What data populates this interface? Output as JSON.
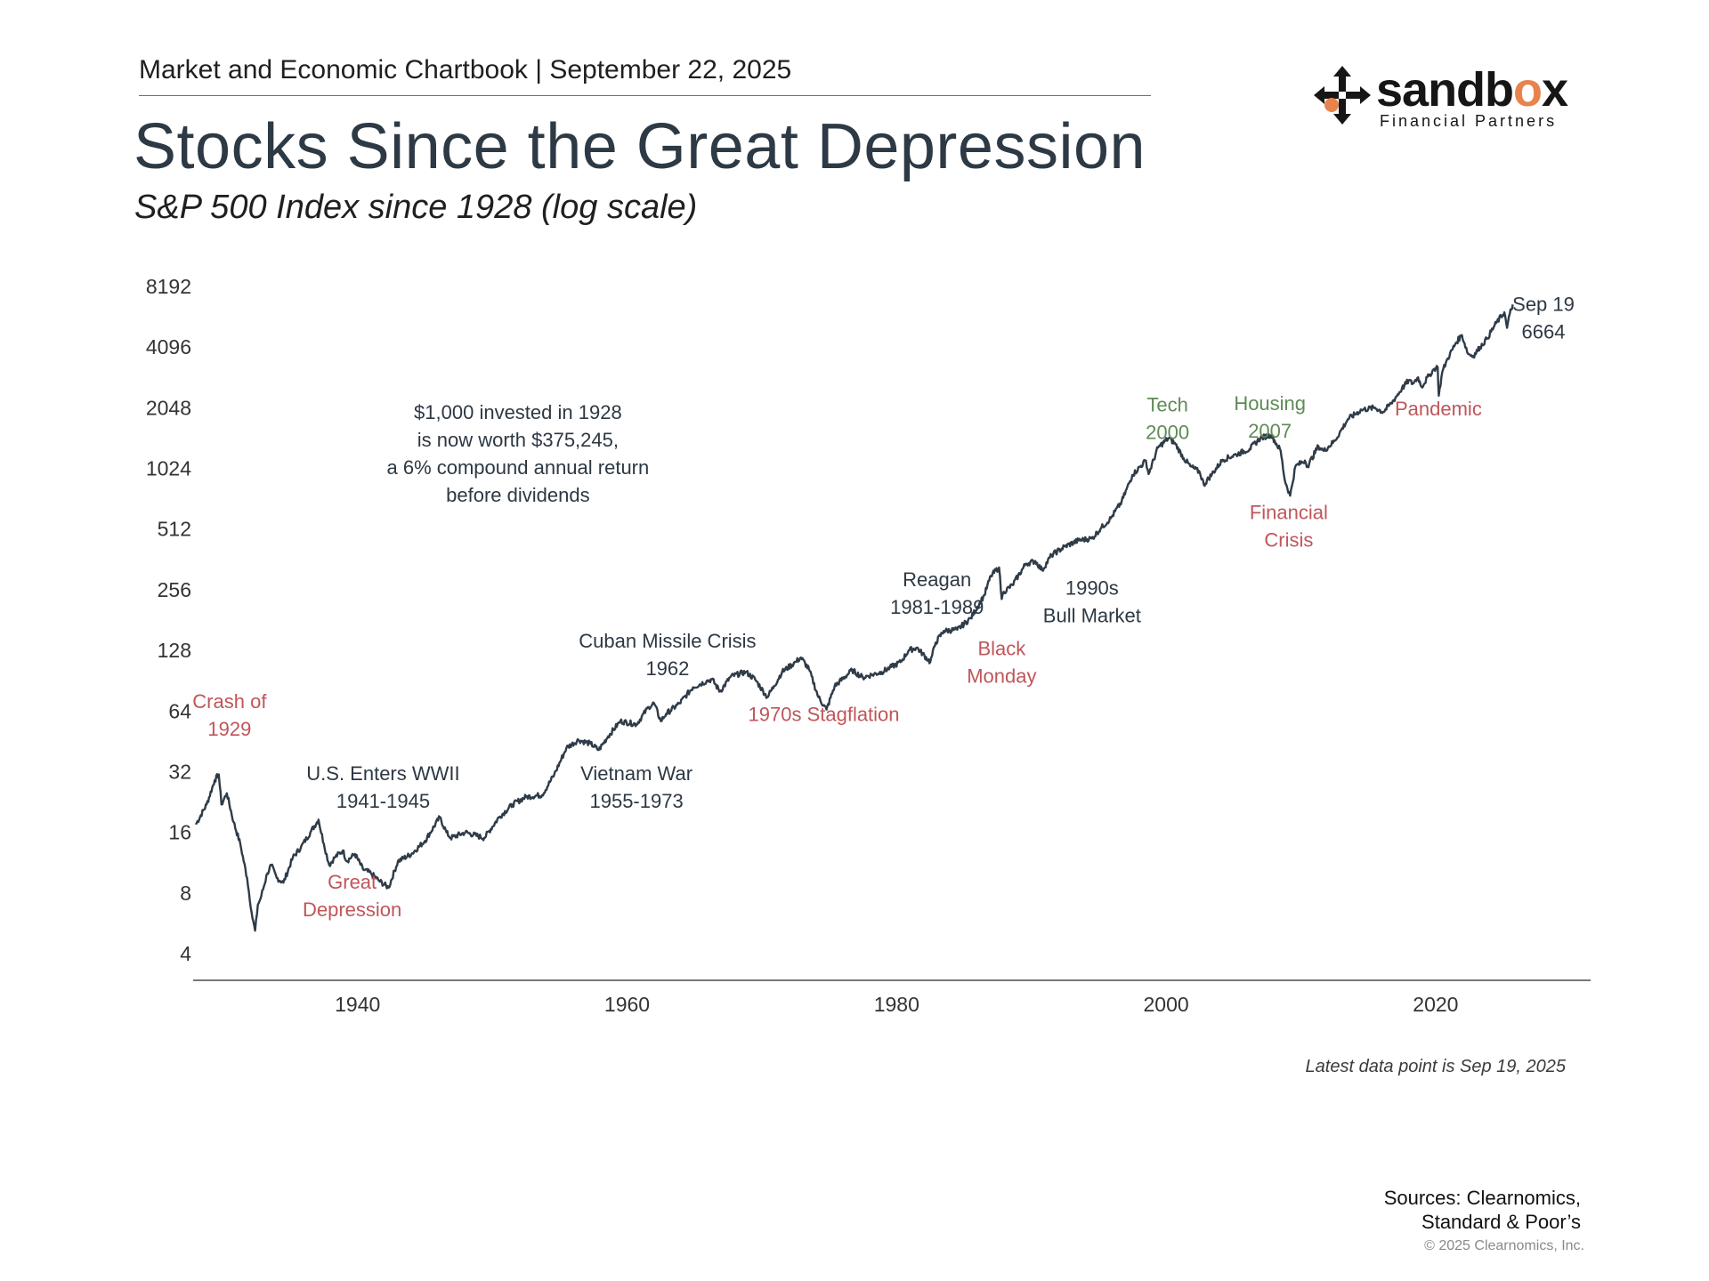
{
  "header": {
    "chartbook": "Market and Economic Chartbook | September 22, 2025",
    "title": "Stocks Since the Great Depression",
    "subtitle": "S&P 500 Index since 1928 (log scale)"
  },
  "logo": {
    "word_main": "sandb",
    "word_accent": "o",
    "word_end": "x",
    "tagline": "Financial Partners",
    "accent_color": "#e8834d"
  },
  "chart_data": {
    "type": "line",
    "title": "Stocks Since the Great Depression",
    "subtitle": "S&P 500 Index since 1928 (log scale)",
    "yscale": "log2",
    "ylim": [
      4,
      8192
    ],
    "xlim": [
      1927.8,
      2031.5
    ],
    "y_ticks": [
      4,
      8,
      16,
      32,
      64,
      128,
      256,
      512,
      1024,
      2048,
      4096,
      8192
    ],
    "y_tick_labels": [
      "4",
      "8",
      "16",
      "32",
      "64",
      "128",
      "256",
      "512",
      "1024",
      "2048",
      "4096",
      "8192"
    ],
    "x_ticks": [
      1940,
      1960,
      1980,
      2000,
      2020
    ],
    "x_tick_labels": [
      "1940",
      "1960",
      "1980",
      "2000",
      "2020"
    ],
    "series": [
      {
        "name": "S&P 500 Index",
        "color": "#2f3b47",
        "x": [
          1928.0,
          1928.8,
          1929.4,
          1929.7,
          1929.9,
          1930.3,
          1930.8,
          1931.3,
          1931.8,
          1932.2,
          1932.4,
          1932.6,
          1932.8,
          1933.3,
          1933.6,
          1934.0,
          1934.5,
          1935.2,
          1935.8,
          1936.5,
          1937.1,
          1937.5,
          1937.9,
          1938.3,
          1938.9,
          1939.2,
          1939.8,
          1940.4,
          1941.0,
          1941.6,
          1942.3,
          1943.0,
          1944.0,
          1945.0,
          1946.1,
          1946.6,
          1946.9,
          1948.0,
          1949.4,
          1950.5,
          1951.5,
          1952.5,
          1953.7,
          1954.6,
          1955.5,
          1956.4,
          1957.3,
          1957.9,
          1958.6,
          1959.5,
          1960.7,
          1961.6,
          1962.0,
          1962.5,
          1962.9,
          1963.9,
          1964.9,
          1965.9,
          1966.3,
          1966.9,
          1967.7,
          1968.8,
          1969.5,
          1970.4,
          1970.9,
          1971.5,
          1972.5,
          1972.9,
          1973.5,
          1974.2,
          1974.8,
          1975.4,
          1976.7,
          1977.5,
          1978.2,
          1978.9,
          1979.5,
          1980.3,
          1980.9,
          1981.5,
          1982.5,
          1982.9,
          1983.5,
          1984.5,
          1985.5,
          1986.5,
          1987.0,
          1987.6,
          1987.8,
          1987.95,
          1988.6,
          1989.6,
          1990.3,
          1990.8,
          1991.5,
          1992.5,
          1993.5,
          1994.5,
          1995.2,
          1995.9,
          1996.7,
          1997.5,
          1998.5,
          1998.7,
          1999.4,
          2000.2,
          2000.7,
          2001.3,
          2001.8,
          2002.5,
          2002.8,
          2003.4,
          2004.2,
          2005.2,
          2006.2,
          2007.0,
          2007.8,
          2008.5,
          2008.8,
          2009.2,
          2009.6,
          2010.3,
          2010.5,
          2011.3,
          2011.7,
          2012.5,
          2013.5,
          2014.5,
          2015.5,
          2016.1,
          2016.7,
          2017.5,
          2018.0,
          2018.3,
          2018.7,
          2018.95,
          2019.5,
          2019.9,
          2020.15,
          2020.23,
          2020.5,
          2020.9,
          2021.5,
          2021.95,
          2022.4,
          2022.8,
          2023.3,
          2023.8,
          2024.5,
          2025.1,
          2025.3,
          2025.5,
          2025.72
        ],
        "values": [
          17.5,
          22,
          29,
          31,
          22,
          25,
          18,
          14,
          9.5,
          6,
          5.2,
          7,
          7.5,
          10,
          11,
          9.5,
          9,
          12,
          13.5,
          16,
          18.5,
          14,
          11,
          12,
          13,
          11.5,
          12.5,
          10.5,
          10,
          9.2,
          8.5,
          11.5,
          12.5,
          14.5,
          19,
          16,
          15,
          16,
          15,
          19,
          22,
          24,
          24.5,
          31,
          42,
          46,
          44,
          41,
          48,
          57,
          55,
          67,
          70,
          57,
          62,
          70,
          84,
          90,
          92,
          80,
          95,
          100,
          92,
          75,
          85,
          100,
          112,
          118,
          103,
          75,
          65,
          85,
          102,
          94,
          97,
          100,
          105,
          112,
          128,
          132,
          112,
          140,
          160,
          162,
          185,
          240,
          300,
          330,
          230,
          250,
          270,
          345,
          355,
          320,
          380,
          420,
          450,
          460,
          520,
          580,
          700,
          950,
          1120,
          960,
          1300,
          1450,
          1350,
          1150,
          1050,
          980,
          850,
          960,
          1130,
          1200,
          1280,
          1450,
          1500,
          1250,
          900,
          750,
          1050,
          1120,
          1050,
          1320,
          1250,
          1400,
          1800,
          2000,
          2050,
          1950,
          2150,
          2550,
          2800,
          2700,
          2900,
          2600,
          2950,
          3200,
          3250,
          2350,
          3100,
          3600,
          4300,
          4700,
          3800,
          3700,
          4100,
          4500,
          5400,
          6100,
          5100,
          6000,
          6664
        ]
      }
    ],
    "annotations": [
      {
        "lines": [
          "Crash of",
          "1929"
        ],
        "kind": "decline",
        "x": 1930.5,
        "y": 66
      },
      {
        "lines": [
          "Great",
          "Depression"
        ],
        "kind": "decline",
        "x": 1939.6,
        "y": 8.4
      },
      {
        "lines": [
          "U.S. Enters WWII",
          "1941-1945"
        ],
        "kind": "event",
        "x": 1941.9,
        "y": 29
      },
      {
        "lines": [
          "$1,000 invested in 1928",
          "is now worth $375,245,",
          "a 6% compound annual return",
          "before dividends"
        ],
        "kind": "event",
        "x": 1951.9,
        "y": 1800
      },
      {
        "lines": [
          "Cuban Missile Crisis",
          "1962"
        ],
        "kind": "event",
        "x": 1963.0,
        "y": 132
      },
      {
        "lines": [
          "Vietnam War",
          "1955-1973"
        ],
        "kind": "event",
        "x": 1960.7,
        "y": 29
      },
      {
        "lines": [
          "1970s Stagflation"
        ],
        "kind": "decline",
        "x": 1974.6,
        "y": 57
      },
      {
        "lines": [
          "Reagan",
          "1981-1989"
        ],
        "kind": "event",
        "x": 1983.0,
        "y": 266
      },
      {
        "lines": [
          "Black",
          "Monday"
        ],
        "kind": "decline",
        "x": 1987.8,
        "y": 121
      },
      {
        "lines": [
          "1990s",
          "Bull Market"
        ],
        "kind": "event",
        "x": 1994.5,
        "y": 242
      },
      {
        "lines": [
          "Tech",
          "2000"
        ],
        "kind": "rally",
        "x": 2000.1,
        "y": 1960
      },
      {
        "lines": [
          "Housing",
          "2007"
        ],
        "kind": "rally",
        "x": 2007.7,
        "y": 1990
      },
      {
        "lines": [
          "Financial",
          "Crisis"
        ],
        "kind": "decline",
        "x": 2009.1,
        "y": 575
      },
      {
        "lines": [
          "Pandemic"
        ],
        "kind": "decline",
        "x": 2020.2,
        "y": 1880
      },
      {
        "lines": [
          "Sep 19",
          "6664"
        ],
        "kind": "event",
        "x": 2028.0,
        "y": 6200
      }
    ],
    "colors": {
      "decline": "#c0555a",
      "rally": "#5e8a56",
      "event": "#2d3843",
      "line": "#2f3b47",
      "axis": "#333333"
    },
    "grid": false,
    "legend": "none"
  },
  "footer": {
    "note": "Latest data point is Sep 19, 2025",
    "sources_line1": "Sources: Clearnomics,",
    "sources_line2": "Standard & Poor’s",
    "copyright": "© 2025 Clearnomics, Inc."
  }
}
